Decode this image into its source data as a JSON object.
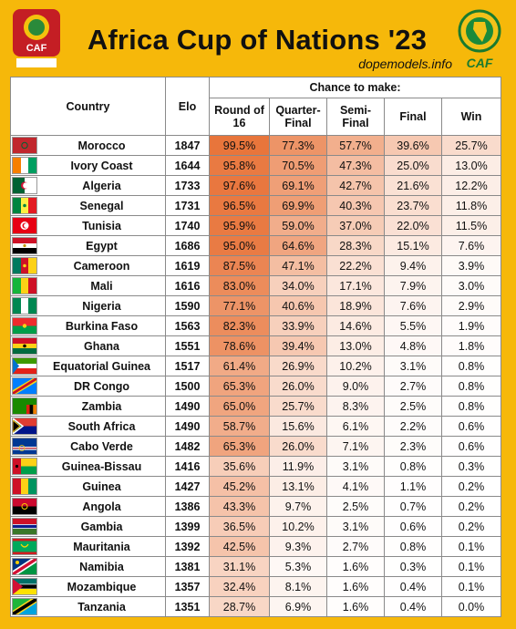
{
  "title": "Africa Cup of Nations '23",
  "site": "dopemodels.info",
  "logo_left_text": "CAF",
  "logo_right_text": "CAF",
  "headers": {
    "country": "Country",
    "elo": "Elo",
    "chance_group": "Chance to make:",
    "round16": "Round of 16",
    "quarter": "Quarter-Final",
    "semi": "Semi-Final",
    "final": "Final",
    "win": "Win"
  },
  "colors": {
    "background": "#f6b80a",
    "heat_high": "#e8743a",
    "heat_low": "#ffffff"
  },
  "teams": [
    {
      "country": "Morocco",
      "elo": "1847",
      "r16": "99.5%",
      "qf": "77.3%",
      "sf": "57.7%",
      "final": "39.6%",
      "win": "25.7%",
      "flag": "morocco-flag"
    },
    {
      "country": "Ivory Coast",
      "elo": "1644",
      "r16": "95.8%",
      "qf": "70.5%",
      "sf": "47.3%",
      "final": "25.0%",
      "win": "13.0%",
      "flag": "ivory-coast-flag"
    },
    {
      "country": "Algeria",
      "elo": "1733",
      "r16": "97.6%",
      "qf": "69.1%",
      "sf": "42.7%",
      "final": "21.6%",
      "win": "12.2%",
      "flag": "algeria-flag"
    },
    {
      "country": "Senegal",
      "elo": "1731",
      "r16": "96.5%",
      "qf": "69.9%",
      "sf": "40.3%",
      "final": "23.7%",
      "win": "11.8%",
      "flag": "senegal-flag"
    },
    {
      "country": "Tunisia",
      "elo": "1740",
      "r16": "95.9%",
      "qf": "59.0%",
      "sf": "37.0%",
      "final": "22.0%",
      "win": "11.5%",
      "flag": "tunisia-flag"
    },
    {
      "country": "Egypt",
      "elo": "1686",
      "r16": "95.0%",
      "qf": "64.6%",
      "sf": "28.3%",
      "final": "15.1%",
      "win": "7.6%",
      "flag": "egypt-flag"
    },
    {
      "country": "Cameroon",
      "elo": "1619",
      "r16": "87.5%",
      "qf": "47.1%",
      "sf": "22.2%",
      "final": "9.4%",
      "win": "3.9%",
      "flag": "cameroon-flag"
    },
    {
      "country": "Mali",
      "elo": "1616",
      "r16": "83.0%",
      "qf": "34.0%",
      "sf": "17.1%",
      "final": "7.9%",
      "win": "3.0%",
      "flag": "mali-flag"
    },
    {
      "country": "Nigeria",
      "elo": "1590",
      "r16": "77.1%",
      "qf": "40.6%",
      "sf": "18.9%",
      "final": "7.6%",
      "win": "2.9%",
      "flag": "nigeria-flag"
    },
    {
      "country": "Burkina Faso",
      "elo": "1563",
      "r16": "82.3%",
      "qf": "33.9%",
      "sf": "14.6%",
      "final": "5.5%",
      "win": "1.9%",
      "flag": "burkina-faso-flag"
    },
    {
      "country": "Ghana",
      "elo": "1551",
      "r16": "78.6%",
      "qf": "39.4%",
      "sf": "13.0%",
      "final": "4.8%",
      "win": "1.8%",
      "flag": "ghana-flag"
    },
    {
      "country": "Equatorial Guinea",
      "elo": "1517",
      "r16": "61.4%",
      "qf": "26.9%",
      "sf": "10.2%",
      "final": "3.1%",
      "win": "0.8%",
      "flag": "equatorial-guinea-flag"
    },
    {
      "country": "DR Congo",
      "elo": "1500",
      "r16": "65.3%",
      "qf": "26.0%",
      "sf": "9.0%",
      "final": "2.7%",
      "win": "0.8%",
      "flag": "dr-congo-flag"
    },
    {
      "country": "Zambia",
      "elo": "1490",
      "r16": "65.0%",
      "qf": "25.7%",
      "sf": "8.3%",
      "final": "2.5%",
      "win": "0.8%",
      "flag": "zambia-flag"
    },
    {
      "country": "South Africa",
      "elo": "1490",
      "r16": "58.7%",
      "qf": "15.6%",
      "sf": "6.1%",
      "final": "2.2%",
      "win": "0.6%",
      "flag": "south-africa-flag"
    },
    {
      "country": "Cabo Verde",
      "elo": "1482",
      "r16": "65.3%",
      "qf": "26.0%",
      "sf": "7.1%",
      "final": "2.3%",
      "win": "0.6%",
      "flag": "cabo-verde-flag"
    },
    {
      "country": "Guinea-Bissau",
      "elo": "1416",
      "r16": "35.6%",
      "qf": "11.9%",
      "sf": "3.1%",
      "final": "0.8%",
      "win": "0.3%",
      "flag": "guinea-bissau-flag"
    },
    {
      "country": "Guinea",
      "elo": "1427",
      "r16": "45.2%",
      "qf": "13.1%",
      "sf": "4.1%",
      "final": "1.1%",
      "win": "0.2%",
      "flag": "guinea-flag"
    },
    {
      "country": "Angola",
      "elo": "1386",
      "r16": "43.3%",
      "qf": "9.7%",
      "sf": "2.5%",
      "final": "0.7%",
      "win": "0.2%",
      "flag": "angola-flag"
    },
    {
      "country": "Gambia",
      "elo": "1399",
      "r16": "36.5%",
      "qf": "10.2%",
      "sf": "3.1%",
      "final": "0.6%",
      "win": "0.2%",
      "flag": "gambia-flag"
    },
    {
      "country": "Mauritania",
      "elo": "1392",
      "r16": "42.5%",
      "qf": "9.3%",
      "sf": "2.7%",
      "final": "0.8%",
      "win": "0.1%",
      "flag": "mauritania-flag"
    },
    {
      "country": "Namibia",
      "elo": "1381",
      "r16": "31.1%",
      "qf": "5.3%",
      "sf": "1.6%",
      "final": "0.3%",
      "win": "0.1%",
      "flag": "namibia-flag"
    },
    {
      "country": "Mozambique",
      "elo": "1357",
      "r16": "32.4%",
      "qf": "8.1%",
      "sf": "1.6%",
      "final": "0.4%",
      "win": "0.1%",
      "flag": "mozambique-flag"
    },
    {
      "country": "Tanzania",
      "elo": "1351",
      "r16": "28.7%",
      "qf": "6.9%",
      "sf": "1.6%",
      "final": "0.4%",
      "win": "0.0%",
      "flag": "tanzania-flag"
    }
  ]
}
